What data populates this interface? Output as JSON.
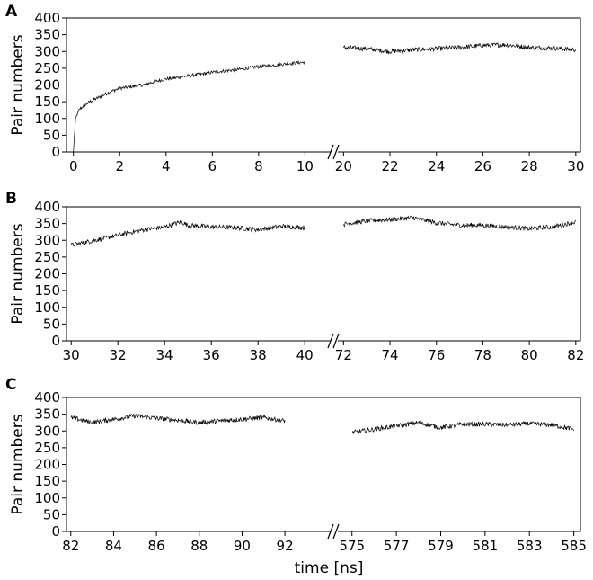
{
  "chart_data": [
    {
      "type": "line",
      "panel": "A",
      "ylabel": "Pair numbers",
      "xlabel": "",
      "ylim": [
        0,
        400
      ],
      "yticks": [
        0,
        50,
        100,
        150,
        200,
        250,
        300,
        350,
        400
      ],
      "xaxis_break": true,
      "segments": [
        {
          "xlim": [
            -0.3,
            10.8
          ],
          "xticks": [
            0,
            2,
            4,
            6,
            8,
            10
          ],
          "series": {
            "x": [
              0.0,
              0.05,
              0.1,
              0.2,
              0.3,
              0.5,
              0.7,
              1.0,
              1.3,
              1.6,
              2.0,
              2.5,
              3.0,
              3.5,
              4.0,
              4.5,
              5.0,
              5.5,
              6.0,
              6.5,
              7.0,
              7.5,
              8.0,
              8.5,
              9.0,
              9.5,
              10.0
            ],
            "y": [
              0,
              60,
              100,
              120,
              130,
              140,
              150,
              160,
              170,
              180,
              190,
              195,
              200,
              210,
              218,
              222,
              228,
              232,
              238,
              242,
              245,
              250,
              255,
              258,
              262,
              265,
              268
            ]
          }
        },
        {
          "xlim": [
            19.6,
            30.2
          ],
          "xticks": [
            20,
            22,
            24,
            26,
            28,
            30
          ],
          "series": {
            "x": [
              20,
              21,
              22,
              23,
              24,
              25,
              26,
              27,
              28,
              29,
              30
            ],
            "y": [
              312,
              308,
              300,
              305,
              308,
              312,
              318,
              320,
              312,
              310,
              305
            ]
          }
        }
      ]
    },
    {
      "type": "line",
      "panel": "B",
      "ylabel": "Pair numbers",
      "xlabel": "",
      "ylim": [
        0,
        400
      ],
      "yticks": [
        0,
        50,
        100,
        150,
        200,
        250,
        300,
        350,
        400
      ],
      "xaxis_break": true,
      "segments": [
        {
          "xlim": [
            29.8,
            40.8
          ],
          "xticks": [
            30,
            32,
            34,
            36,
            38,
            40
          ],
          "series": {
            "x": [
              30,
              31,
              32,
              33,
              34,
              34.7,
              35,
              36,
              37,
              38,
              39,
              40
            ],
            "y": [
              285,
              300,
              315,
              330,
              340,
              355,
              345,
              340,
              338,
              332,
              342,
              338
            ]
          }
        },
        {
          "xlim": [
            71.6,
            82.2
          ],
          "xticks": [
            72,
            74,
            76,
            78,
            80,
            82
          ],
          "series": {
            "x": [
              72,
              73,
              74,
              75,
              76,
              77,
              78,
              79,
              80,
              81,
              82
            ],
            "y": [
              348,
              358,
              362,
              368,
              352,
              345,
              345,
              340,
              335,
              340,
              355
            ]
          }
        }
      ]
    },
    {
      "type": "line",
      "panel": "C",
      "ylabel": "Pair numbers",
      "xlabel": "time [ns]",
      "ylim": [
        0,
        400
      ],
      "yticks": [
        0,
        50,
        100,
        150,
        200,
        250,
        300,
        350,
        400
      ],
      "xaxis_break": true,
      "segments": [
        {
          "xlim": [
            81.8,
            93.8
          ],
          "xticks": [
            82,
            84,
            86,
            88,
            90,
            92
          ],
          "series": {
            "x": [
              82,
              83,
              84,
              85,
              86,
              87,
              88,
              89,
              90,
              91,
              92
            ],
            "y": [
              340,
              325,
              335,
              345,
              338,
              332,
              325,
              330,
              335,
              340,
              330
            ]
          }
        },
        {
          "xlim": [
            574.2,
            585.3
          ],
          "xticks": [
            575,
            577,
            579,
            581,
            583,
            585
          ],
          "series": {
            "x": [
              575,
              576,
              577,
              578,
              579,
              580,
              581,
              582,
              583,
              584,
              585
            ],
            "y": [
              295,
              305,
              315,
              325,
              310,
              320,
              320,
              318,
              322,
              318,
              305
            ]
          }
        }
      ]
    }
  ]
}
